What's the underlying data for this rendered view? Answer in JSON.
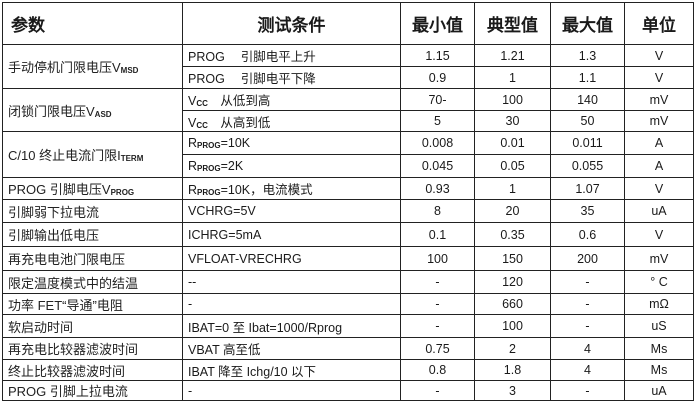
{
  "headers": [
    "参数",
    "测试条件",
    "最小值",
    "典型值",
    "最大值",
    "单位"
  ],
  "groups": [
    {
      "param": {
        "text": "手动停机门限电压V",
        "sub": "MSD"
      },
      "rows": [
        {
          "cond": {
            "pre": "PROG　 引脚电平上升"
          },
          "min": "1.15",
          "typ": "1.21",
          "max": "1.3",
          "unit": "V"
        },
        {
          "cond": {
            "pre": "PROG　 引脚电平下降"
          },
          "min": "0.9",
          "typ": "1",
          "max": "1.1",
          "unit": "V"
        }
      ]
    },
    {
      "param": {
        "text": "闭锁门限电压V",
        "sub": "ASD"
      },
      "rows": [
        {
          "cond": {
            "pre": "V",
            "sub": "CC",
            "post": "　从低到高"
          },
          "min": "70-",
          "typ": "100",
          "max": "140",
          "unit": "mV"
        },
        {
          "cond": {
            "pre": "V",
            "sub": "CC",
            "post": "　从高到低"
          },
          "min": "5",
          "typ": "30",
          "max": "50",
          "unit": "mV"
        }
      ]
    },
    {
      "param": {
        "text": "C/10  终止电流门限I",
        "sub": "TERM"
      },
      "rows": [
        {
          "cond": {
            "pre": "R",
            "sub": "PROG",
            "post": "=10K"
          },
          "min": "0.008",
          "typ": "0.01",
          "max": "0.011",
          "unit": "A"
        },
        {
          "cond": {
            "pre": "R",
            "sub": "PROG",
            "post": "=2K"
          },
          "min": "0.045",
          "typ": "0.05",
          "max": "0.055",
          "unit": "A"
        }
      ]
    },
    {
      "param": {
        "text": "PROG  引脚电压V",
        "sub": "PROG"
      },
      "rows": [
        {
          "cond": {
            "pre": "R",
            "sub": "PROG",
            "post": "=10K，电流模式"
          },
          "min": "0.93",
          "typ": "1",
          "max": "1.07",
          "unit": "V"
        }
      ]
    },
    {
      "param": {
        "text": "引脚弱下拉电流"
      },
      "rows": [
        {
          "cond": {
            "pre": "VCHRG=5V"
          },
          "min": "8",
          "typ": "20",
          "max": "35",
          "unit": "uA"
        }
      ]
    },
    {
      "param": {
        "text": "引脚输出低电压"
      },
      "rows": [
        {
          "cond": {
            "pre": "ICHRG=5mA"
          },
          "min": "0.1",
          "typ": "0.35",
          "max": "0.6",
          "unit": "V"
        }
      ]
    },
    {
      "param": {
        "text": "再充电电池门限电压"
      },
      "rows": [
        {
          "cond": {
            "pre": "VFLOAT-VRECHRG"
          },
          "min": "100",
          "typ": "150",
          "max": "200",
          "unit": "mV"
        }
      ]
    },
    {
      "param": {
        "text": "限定温度模式中的结温"
      },
      "rows": [
        {
          "cond": {
            "pre": "--"
          },
          "min": "-",
          "typ": "120",
          "max": "-",
          "unit": "°  C"
        }
      ]
    },
    {
      "param": {
        "text": "功率  FET“导通”电阻"
      },
      "rows": [
        {
          "cond": {
            "pre": "-"
          },
          "min": "-",
          "typ": "660",
          "max": "-",
          "unit": "mΩ"
        }
      ]
    },
    {
      "param": {
        "text": "软启动时间"
      },
      "rows": [
        {
          "cond": {
            "pre": "IBAT=0  至  Ibat=1000/Rprog"
          },
          "min": "-",
          "typ": "100",
          "max": "-",
          "unit": "uS"
        }
      ]
    },
    {
      "param": {
        "text": "再充电比较器滤波时间"
      },
      "rows": [
        {
          "cond": {
            "pre": "VBAT  高至低"
          },
          "min": "0.75",
          "typ": "2",
          "max": "4",
          "unit": "Ms"
        }
      ]
    },
    {
      "param": {
        "text": "终止比较器滤波时间"
      },
      "rows": [
        {
          "cond": {
            "pre": "IBAT  降至  Ichg/10  以下"
          },
          "min": "0.8",
          "typ": "1.8",
          "max": "4",
          "unit": "Ms"
        }
      ]
    },
    {
      "param": {
        "text": "PROG  引脚上拉电流"
      },
      "rows": [
        {
          "cond": {
            "pre": "-"
          },
          "min": "-",
          "typ": "3",
          "max": "-",
          "unit": "uA"
        }
      ]
    }
  ]
}
